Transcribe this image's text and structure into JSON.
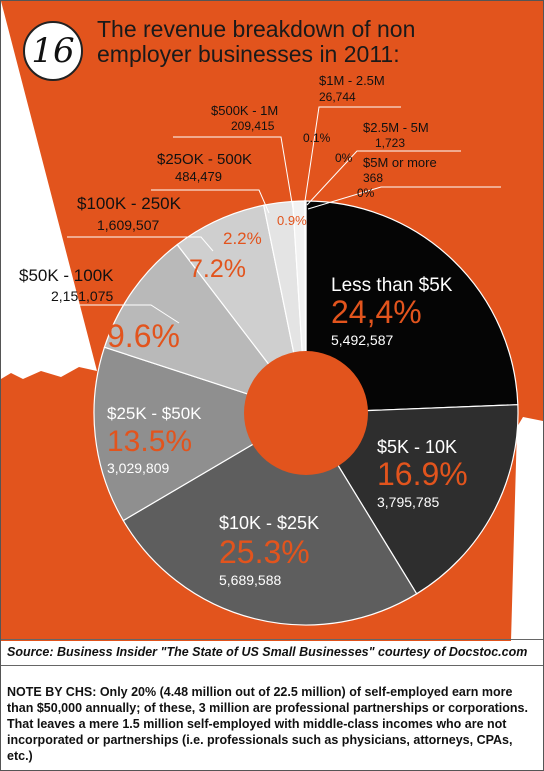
{
  "badge_number": "16",
  "title_lines": [
    "The revenue breakdown of non",
    "employer businesses in 2011:"
  ],
  "colors": {
    "orange": "#e2541d",
    "white": "#ffffff"
  },
  "chart_data": {
    "type": "pie",
    "style": "donut",
    "slices": [
      {
        "label": "Less than $5K",
        "percent_label": "24,4%",
        "count_label": "5,492,587",
        "value": 24.4,
        "color": "#050505"
      },
      {
        "label": "$5K - 10K",
        "percent_label": "16.9%",
        "count_label": "3,795,785",
        "value": 16.9,
        "color": "#2e2e2e"
      },
      {
        "label": "$10K - $25K",
        "percent_label": "25.3%",
        "count_label": "5,689,588",
        "value": 25.3,
        "color": "#5e5e5e"
      },
      {
        "label": "$25K - $50K",
        "percent_label": "13.5%",
        "count_label": "3,029,809",
        "value": 13.5,
        "color": "#8f8f8f"
      },
      {
        "label": "$50K - 100K",
        "percent_label": "9.6%",
        "count_label": "2,151,075",
        "value": 9.6,
        "color": "#b9b9b9"
      },
      {
        "label": "$100K - 250K",
        "percent_label": "7.2%",
        "count_label": "1,609,507",
        "value": 7.2,
        "color": "#cfcfcf"
      },
      {
        "label": "$25OK - 500K",
        "percent_label": "2.2%",
        "count_label": "484,479",
        "value": 2.2,
        "color": "#e4e4e4"
      },
      {
        "label": "$500K - 1M",
        "percent_label": "0.9%",
        "count_label": "209,415",
        "value": 0.9,
        "color": "#f2f2f2"
      },
      {
        "label": "$1M - 2.5M",
        "percent_label": "0.1%",
        "count_label": "26,744",
        "value": 0.1,
        "color": "#ffffff"
      },
      {
        "label": "$2.5M - 5M",
        "percent_label": "0%",
        "count_label": "1,723",
        "value": 0,
        "color": "#ffffff"
      },
      {
        "label": "$5M or more",
        "percent_label": "0%",
        "count_label": "368",
        "value": 0,
        "color": "#ffffff"
      }
    ]
  },
  "source_text": "Source: Business Insider \"The State of US Small Businesses\"  courtesy of Docstoc.com",
  "note_text": "NOTE BY CHS: Only 20% (4.48 million out of 22.5 million) of self-employed earn more than $50,000 annually; of these, 3 million are professional partnerships or corporations. That leaves a mere 1.5 million self-employed with middle-class incomes who are not incorporated or partnerships (i.e. professionals such as physicians, attorneys, CPAs, etc.)"
}
